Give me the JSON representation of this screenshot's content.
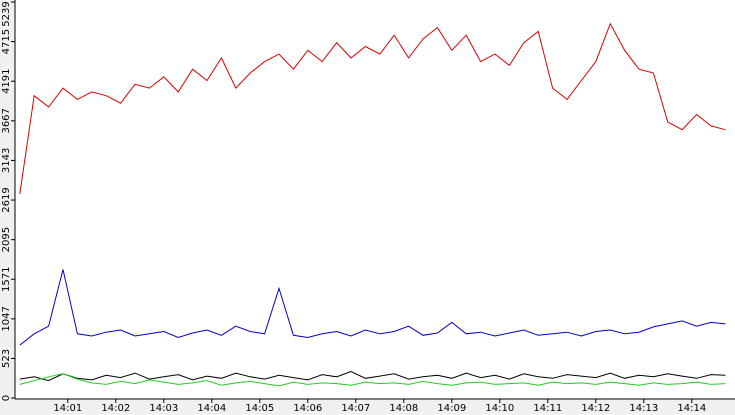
{
  "chart_data": {
    "type": "line",
    "x": [
      0,
      0.3,
      0.6,
      0.9,
      1.2,
      1.5,
      1.8,
      2.1,
      2.4,
      2.7,
      3,
      3.3,
      3.6,
      3.9,
      4.2,
      4.5,
      4.8,
      5.1,
      5.4,
      5.7,
      6,
      6.3,
      6.6,
      6.9,
      7.2,
      7.5,
      7.8,
      8.1,
      8.4,
      8.7,
      9,
      9.3,
      9.6,
      9.9,
      10.2,
      10.5,
      10.8,
      11.1,
      11.4,
      11.7,
      12,
      12.3,
      12.6,
      12.9,
      13.2,
      13.5,
      13.8,
      14.1,
      14.4,
      14.7
    ],
    "xlim": [
      -0.1,
      14.9
    ],
    "xticks": [
      {
        "value": 1,
        "label": "14:01"
      },
      {
        "value": 2,
        "label": "14:02"
      },
      {
        "value": 3,
        "label": "14:03"
      },
      {
        "value": 4,
        "label": "14:04"
      },
      {
        "value": 5,
        "label": "14:05"
      },
      {
        "value": 6,
        "label": "14:06"
      },
      {
        "value": 7,
        "label": "14:07"
      },
      {
        "value": 8,
        "label": "14:08"
      },
      {
        "value": 9,
        "label": "14:09"
      },
      {
        "value": 10,
        "label": "14:10"
      },
      {
        "value": 11,
        "label": "14:11"
      },
      {
        "value": 12,
        "label": "14:12"
      },
      {
        "value": 13,
        "label": "14:13"
      },
      {
        "value": 14,
        "label": "14:14"
      }
    ],
    "ylim": [
      0,
      5239
    ],
    "yticks": [
      0,
      523,
      1047,
      1571,
      2095,
      2619,
      3143,
      3667,
      4191,
      4715,
      5239
    ],
    "series": [
      {
        "color": "#dd0000",
        "values": [
          2700,
          4000,
          3850,
          4100,
          3950,
          4050,
          4000,
          3900,
          4150,
          4100,
          4250,
          4050,
          4350,
          4200,
          4500,
          4100,
          4300,
          4450,
          4550,
          4350,
          4600,
          4450,
          4700,
          4500,
          4650,
          4550,
          4800,
          4500,
          4750,
          4900,
          4600,
          4800,
          4450,
          4550,
          4400,
          4700,
          4850,
          4100,
          3950,
          4200,
          4450,
          4950,
          4600,
          4350,
          4300,
          3650,
          3550,
          3750,
          3600,
          3550
        ]
      },
      {
        "color": "#0000cc",
        "values": [
          700,
          850,
          950,
          1700,
          850,
          820,
          870,
          900,
          820,
          850,
          880,
          800,
          860,
          900,
          830,
          950,
          880,
          850,
          1450,
          830,
          800,
          850,
          880,
          820,
          900,
          850,
          880,
          950,
          830,
          860,
          1000,
          850,
          870,
          820,
          860,
          900,
          830,
          850,
          870,
          820,
          880,
          900,
          850,
          870,
          940,
          980,
          1020,
          950,
          1000,
          980
        ]
      },
      {
        "color": "#000000",
        "values": [
          250,
          280,
          230,
          320,
          260,
          240,
          300,
          270,
          330,
          250,
          280,
          310,
          240,
          290,
          260,
          330,
          280,
          250,
          300,
          270,
          240,
          310,
          280,
          350,
          260,
          290,
          320,
          250,
          280,
          300,
          260,
          330,
          270,
          300,
          250,
          320,
          280,
          260,
          310,
          290,
          270,
          330,
          260,
          300,
          280,
          320,
          290,
          260,
          310,
          300
        ]
      },
      {
        "color": "#22cc22",
        "values": [
          180,
          230,
          280,
          320,
          250,
          200,
          180,
          220,
          190,
          240,
          210,
          180,
          200,
          230,
          170,
          200,
          220,
          190,
          160,
          210,
          180,
          200,
          190,
          170,
          210,
          190,
          200,
          180,
          220,
          190,
          170,
          200,
          210,
          180,
          190,
          200,
          170,
          210,
          190,
          200,
          180,
          210,
          190,
          170,
          200,
          180,
          190,
          210,
          180,
          190
        ]
      }
    ]
  }
}
